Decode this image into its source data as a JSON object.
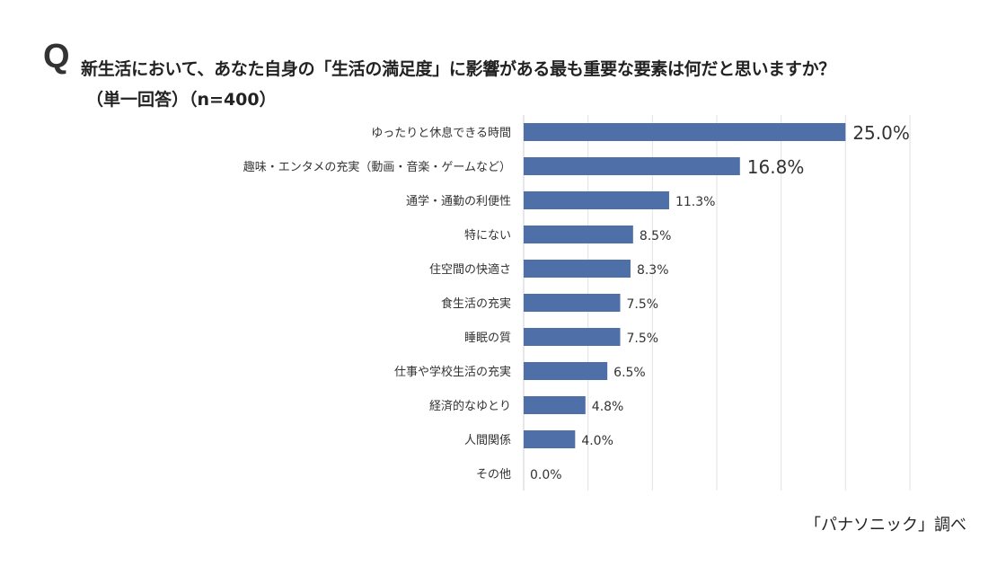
{
  "question_mark": "Q",
  "title": "新生活において、あなた自身の「生活の満足度」に影響がある最も重要な要素は何だと思いますか？",
  "subtitle": "（単一回答）（n=400）",
  "source": "「パナソニック」調べ",
  "chart_data": {
    "type": "bar",
    "orientation": "horizontal",
    "categories": [
      "ゆったりと休息できる時間",
      "趣味・エンタメの充実（動画・音楽・ゲームなど）",
      "通学・通勤の利便性",
      "特にない",
      "住空間の快適さ",
      "食生活の充実",
      "睡眠の質",
      "仕事や学校生活の充実",
      "経済的なゆとり",
      "人間関係",
      "その他"
    ],
    "values": [
      25.0,
      16.8,
      11.3,
      8.5,
      8.3,
      7.5,
      7.5,
      6.5,
      4.8,
      4.0,
      0.0
    ],
    "data_labels": [
      "25.0%",
      "16.8%",
      "11.3%",
      "8.5%",
      "8.3%",
      "7.5%",
      "7.5%",
      "6.5%",
      "4.8%",
      "4.0%",
      "0.0%"
    ],
    "xlim": [
      0,
      30
    ],
    "grid": true,
    "bar_color": "#4f6fa8"
  }
}
